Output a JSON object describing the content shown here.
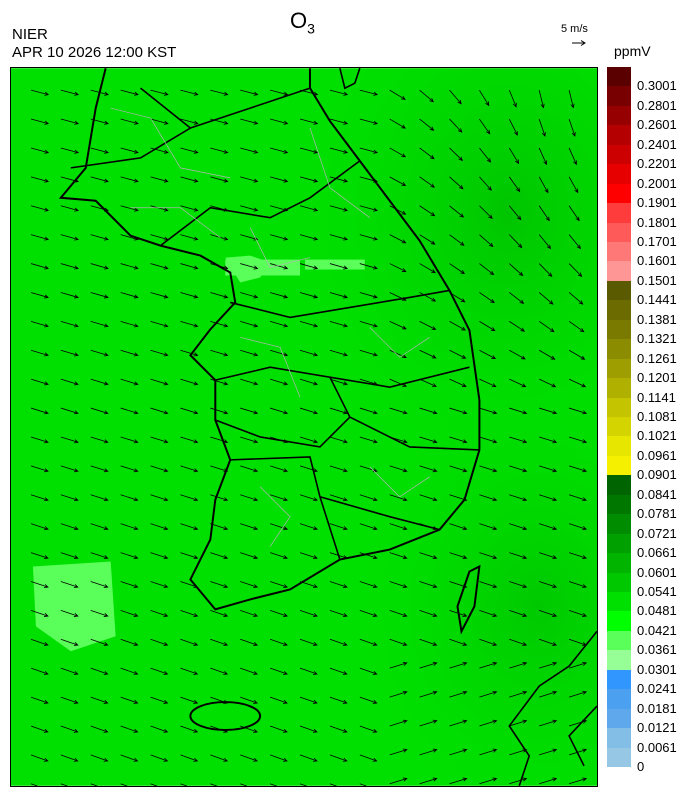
{
  "header": {
    "title_main": "O",
    "title_sub": "3",
    "organization": "NIER",
    "datetime": "APR 10 2026 12:00 KST",
    "wind_reference_label": "5 m/s",
    "unit": "ppmV"
  },
  "map": {
    "variable": "ozone concentration with wind vectors",
    "dominant_fill_color": "#00e000",
    "low_patch_color": "#5aff5a",
    "coastline_color": "#000000",
    "district_border_color": "#b4b4b4"
  },
  "legend": {
    "labels": [
      "0.3001",
      "0.2801",
      "0.2601",
      "0.2401",
      "0.2201",
      "0.2001",
      "0.1901",
      "0.1801",
      "0.1701",
      "0.1601",
      "0.1501",
      "0.1441",
      "0.1381",
      "0.1321",
      "0.1261",
      "0.1201",
      "0.1141",
      "0.1081",
      "0.1021",
      "0.0961",
      "0.0901",
      "0.0841",
      "0.0781",
      "0.0721",
      "0.0661",
      "0.0601",
      "0.0541",
      "0.0481",
      "0.0421",
      "0.0361",
      "0.0301",
      "0.0241",
      "0.0181",
      "0.0121",
      "0.0061",
      "0"
    ],
    "colors": [
      "#5a0000",
      "#780000",
      "#960000",
      "#b40000",
      "#cc0000",
      "#e60000",
      "#ff0000",
      "#ff3c3c",
      "#ff5a5a",
      "#ff7878",
      "#ff9696",
      "#5a5a00",
      "#6b6b00",
      "#7a7a00",
      "#8c8c00",
      "#9e9e00",
      "#b0b000",
      "#c4c400",
      "#d4d400",
      "#e6e600",
      "#f5f000",
      "#006400",
      "#007800",
      "#008c00",
      "#00a000",
      "#00b400",
      "#00c800",
      "#00e000",
      "#00ff00",
      "#5aff5a",
      "#96ff96",
      "#3296ff",
      "#4ba0f0",
      "#5fa8ec",
      "#82bee6",
      "#96c8e6"
    ]
  }
}
